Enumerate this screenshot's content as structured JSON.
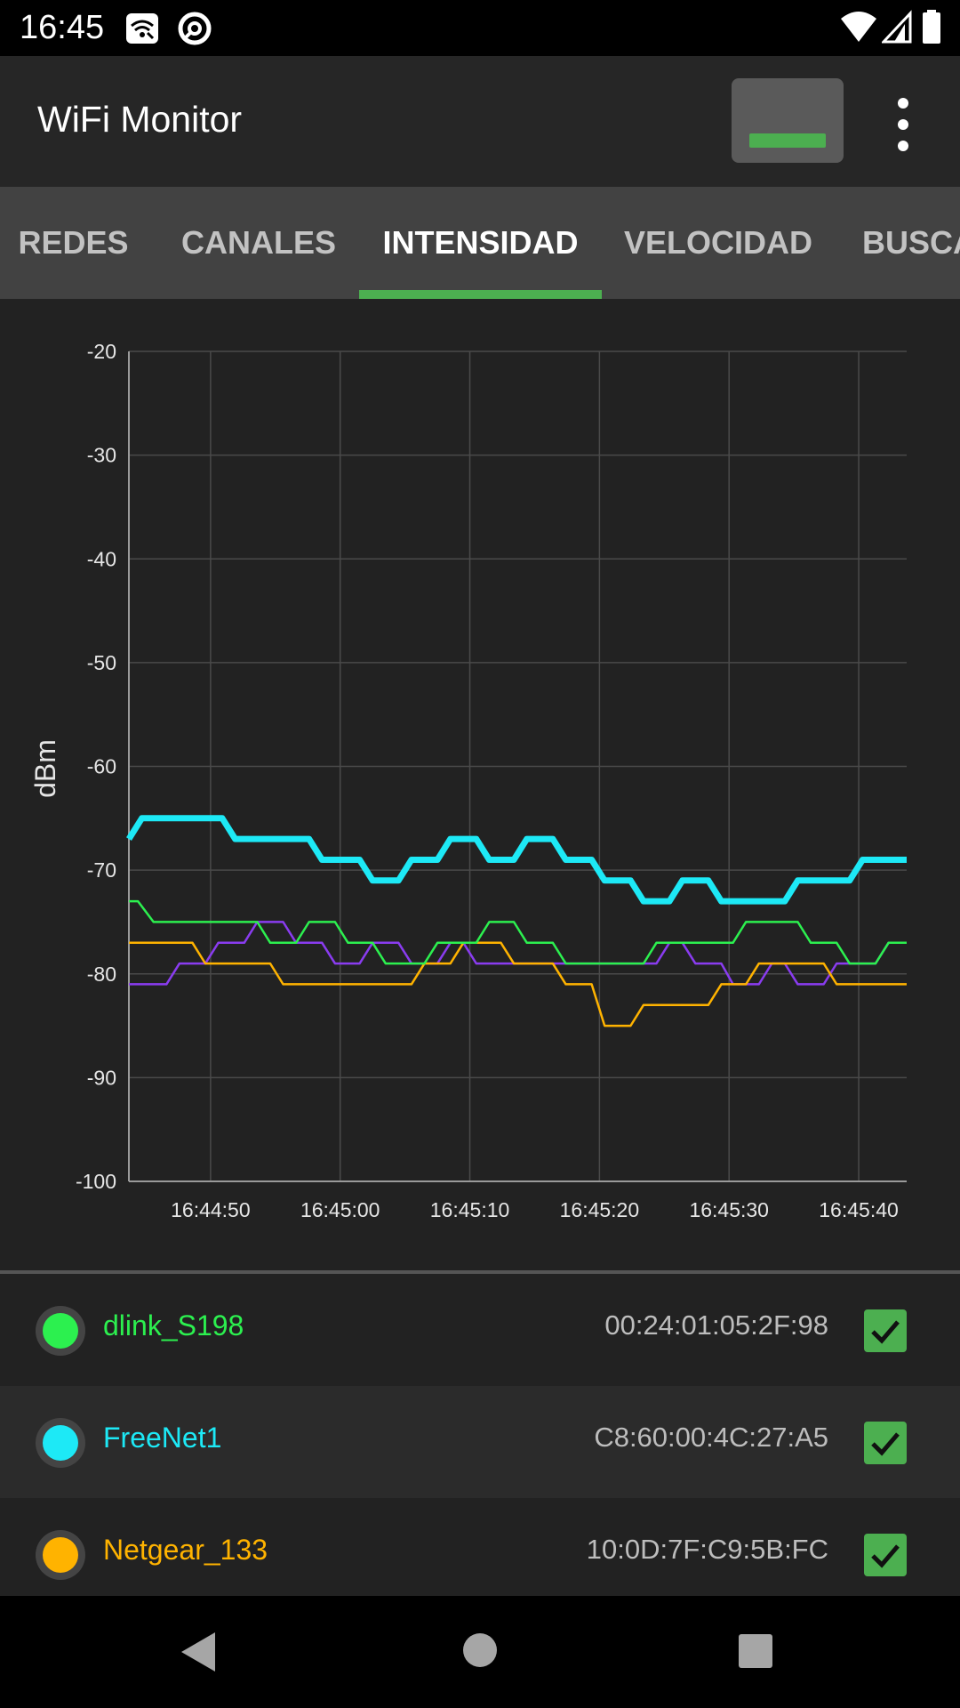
{
  "status_bar": {
    "time": "16:45",
    "icons": [
      "wifi-settings-icon",
      "data-saver-icon",
      "wifi-signal-icon",
      "cell-signal-icon",
      "battery-icon"
    ]
  },
  "app_bar": {
    "title": "WiFi Monitor",
    "toggle_color": "#4caf50",
    "menu_icon": "overflow-menu-icon"
  },
  "tabs": [
    {
      "label": "REDES",
      "active": false
    },
    {
      "label": "CANALES",
      "active": false
    },
    {
      "label": "INTENSIDAD",
      "active": true
    },
    {
      "label": "VELOCIDAD",
      "active": false
    },
    {
      "label": "BUSCA",
      "active": false
    }
  ],
  "accent_color": "#4caf50",
  "chart_data": {
    "type": "line",
    "title": "",
    "ylabel": "dBm",
    "xlabel": "",
    "ylim": [
      -100,
      -20
    ],
    "y_ticks": [
      "-20",
      "-30",
      "-40",
      "-50",
      "-60",
      "-70",
      "-80",
      "-90",
      "-100"
    ],
    "x_ticks": [
      "16:44:50",
      "16:45:00",
      "16:45:10",
      "16:45:20",
      "16:45:30",
      "16:45:40"
    ],
    "xlim_seconds": [
      -6.3,
      53.7
    ],
    "grid": true,
    "series": [
      {
        "name": "FreeNet1",
        "color": "#1de9f6",
        "points": [
          [
            -6.3,
            -67
          ],
          [
            -5.3,
            -65
          ],
          [
            0.9,
            -65
          ],
          [
            1.9,
            -67
          ],
          [
            7.6,
            -67
          ],
          [
            8.6,
            -69
          ],
          [
            11.5,
            -69
          ],
          [
            12.5,
            -71
          ],
          [
            14.5,
            -71
          ],
          [
            15.5,
            -69
          ],
          [
            17.5,
            -69
          ],
          [
            18.5,
            -67
          ],
          [
            20.5,
            -67
          ],
          [
            21.5,
            -69
          ],
          [
            23.4,
            -69
          ],
          [
            24.4,
            -67
          ],
          [
            26.4,
            -67
          ],
          [
            27.4,
            -69
          ],
          [
            29.4,
            -69
          ],
          [
            30.4,
            -71
          ],
          [
            32.4,
            -71
          ],
          [
            33.4,
            -73
          ],
          [
            35.4,
            -73
          ],
          [
            36.4,
            -71
          ],
          [
            38.4,
            -71
          ],
          [
            39.4,
            -73
          ],
          [
            44.3,
            -73
          ],
          [
            45.3,
            -71
          ],
          [
            49.3,
            -71
          ],
          [
            50.3,
            -69
          ],
          [
            53.7,
            -69
          ]
        ]
      },
      {
        "name": "dlink_S198",
        "color": "#2cf04f",
        "points": [
          [
            -6.3,
            -73
          ],
          [
            -5.6,
            -73
          ],
          [
            -4.4,
            -75
          ],
          [
            3.6,
            -75
          ],
          [
            4.6,
            -77
          ],
          [
            6.6,
            -77
          ],
          [
            7.6,
            -75
          ],
          [
            9.6,
            -75
          ],
          [
            10.6,
            -77
          ],
          [
            12.5,
            -77
          ],
          [
            13.5,
            -79
          ],
          [
            16.5,
            -79
          ],
          [
            17.5,
            -77
          ],
          [
            20.5,
            -77
          ],
          [
            21.5,
            -75
          ],
          [
            23.4,
            -75
          ],
          [
            24.4,
            -77
          ],
          [
            26.4,
            -77
          ],
          [
            27.4,
            -79
          ],
          [
            33.4,
            -79
          ],
          [
            34.4,
            -77
          ],
          [
            40.3,
            -77
          ],
          [
            41.3,
            -75
          ],
          [
            45.3,
            -75
          ],
          [
            46.3,
            -77
          ],
          [
            48.3,
            -77
          ],
          [
            49.3,
            -79
          ],
          [
            51.3,
            -79
          ],
          [
            52.3,
            -77
          ],
          [
            53.7,
            -77
          ]
        ]
      },
      {
        "name": "Netgear_133",
        "color": "#ffb300",
        "points": [
          [
            -6.3,
            -77
          ],
          [
            -1.4,
            -77
          ],
          [
            -0.4,
            -79
          ],
          [
            4.6,
            -79
          ],
          [
            5.6,
            -81
          ],
          [
            15.5,
            -81
          ],
          [
            16.5,
            -79
          ],
          [
            18.5,
            -79
          ],
          [
            19.5,
            -77
          ],
          [
            22.4,
            -77
          ],
          [
            23.4,
            -79
          ],
          [
            26.4,
            -79
          ],
          [
            27.4,
            -81
          ],
          [
            29.4,
            -81
          ],
          [
            30.4,
            -85
          ],
          [
            32.4,
            -85
          ],
          [
            33.4,
            -83
          ],
          [
            38.4,
            -83
          ],
          [
            39.4,
            -81
          ],
          [
            41.3,
            -81
          ],
          [
            42.3,
            -79
          ],
          [
            47.3,
            -79
          ],
          [
            48.3,
            -81
          ],
          [
            53.7,
            -81
          ]
        ]
      },
      {
        "name": "",
        "color": "#8a3cf0",
        "points": [
          [
            -6.3,
            -81
          ],
          [
            -3.4,
            -81
          ],
          [
            -2.4,
            -79
          ],
          [
            -0.4,
            -79
          ],
          [
            0.6,
            -77
          ],
          [
            2.6,
            -77
          ],
          [
            3.6,
            -75
          ],
          [
            5.6,
            -75
          ],
          [
            6.6,
            -77
          ],
          [
            8.6,
            -77
          ],
          [
            9.6,
            -79
          ],
          [
            11.5,
            -79
          ],
          [
            12.5,
            -77
          ],
          [
            14.5,
            -77
          ],
          [
            15.5,
            -79
          ],
          [
            17.5,
            -79
          ],
          [
            18.5,
            -77
          ],
          [
            19.5,
            -77
          ],
          [
            20.5,
            -79
          ],
          [
            34.4,
            -79
          ],
          [
            35.4,
            -77
          ],
          [
            36.4,
            -77
          ],
          [
            37.4,
            -79
          ],
          [
            39.4,
            -79
          ],
          [
            40.3,
            -81
          ],
          [
            42.3,
            -81
          ],
          [
            43.3,
            -79
          ],
          [
            44.3,
            -79
          ],
          [
            45.3,
            -81
          ],
          [
            47.3,
            -81
          ],
          [
            48.3,
            -79
          ],
          [
            51.3,
            -79
          ],
          [
            52.3,
            -77
          ],
          [
            53.7,
            -77
          ]
        ]
      }
    ]
  },
  "networks": [
    {
      "name": "dlink_S198",
      "mac": "00:24:01:05:2F:98",
      "color": "#2cf04f",
      "checked": true
    },
    {
      "name": "FreeNet1",
      "mac": "C8:60:00:4C:27:A5",
      "color": "#1de9f6",
      "checked": true
    },
    {
      "name": "Netgear_133",
      "mac": "10:0D:7F:C9:5B:FC",
      "color": "#ffb300",
      "checked": true
    }
  ],
  "nav_bar": {
    "back_icon": "back-icon",
    "home_icon": "home-icon",
    "recents_icon": "recents-icon"
  }
}
